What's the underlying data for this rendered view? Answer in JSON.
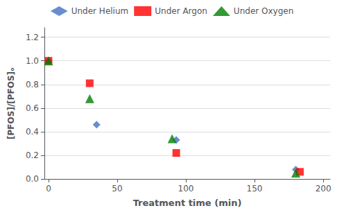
{
  "chart_data": {
    "type": "scatter",
    "xlabel": "Treatment time (min)",
    "ylabel": "[PFOS]/[PFOS]ₒ",
    "series": [
      {
        "name": "Under Helium",
        "color": "#4472C4",
        "marker": "diamond",
        "x": [
          0,
          35,
          93,
          180
        ],
        "values": [
          1.0,
          0.46,
          0.33,
          0.08
        ]
      },
      {
        "name": "Under Argon",
        "color": "#FF0000",
        "marker": "square",
        "x": [
          0,
          30,
          93,
          183
        ],
        "values": [
          1.0,
          0.81,
          0.22,
          0.06
        ]
      },
      {
        "name": "Under Oxygen",
        "color": "#008000",
        "marker": "triangle",
        "x": [
          0,
          30,
          90,
          180
        ],
        "values": [
          1.0,
          0.68,
          0.34,
          0.05
        ]
      }
    ],
    "xlim": [
      -3,
      205
    ],
    "ylim": [
      0.0,
      1.28
    ],
    "xticks": [
      0,
      50,
      100,
      150,
      200
    ],
    "yticks": [
      {
        "value": 0.0,
        "label": "0.0"
      },
      0.2,
      0.4,
      0.6,
      0.8,
      {
        "value": 1.0,
        "label": "1.0"
      },
      1.2
    ],
    "grid": "y",
    "legend": "top"
  }
}
